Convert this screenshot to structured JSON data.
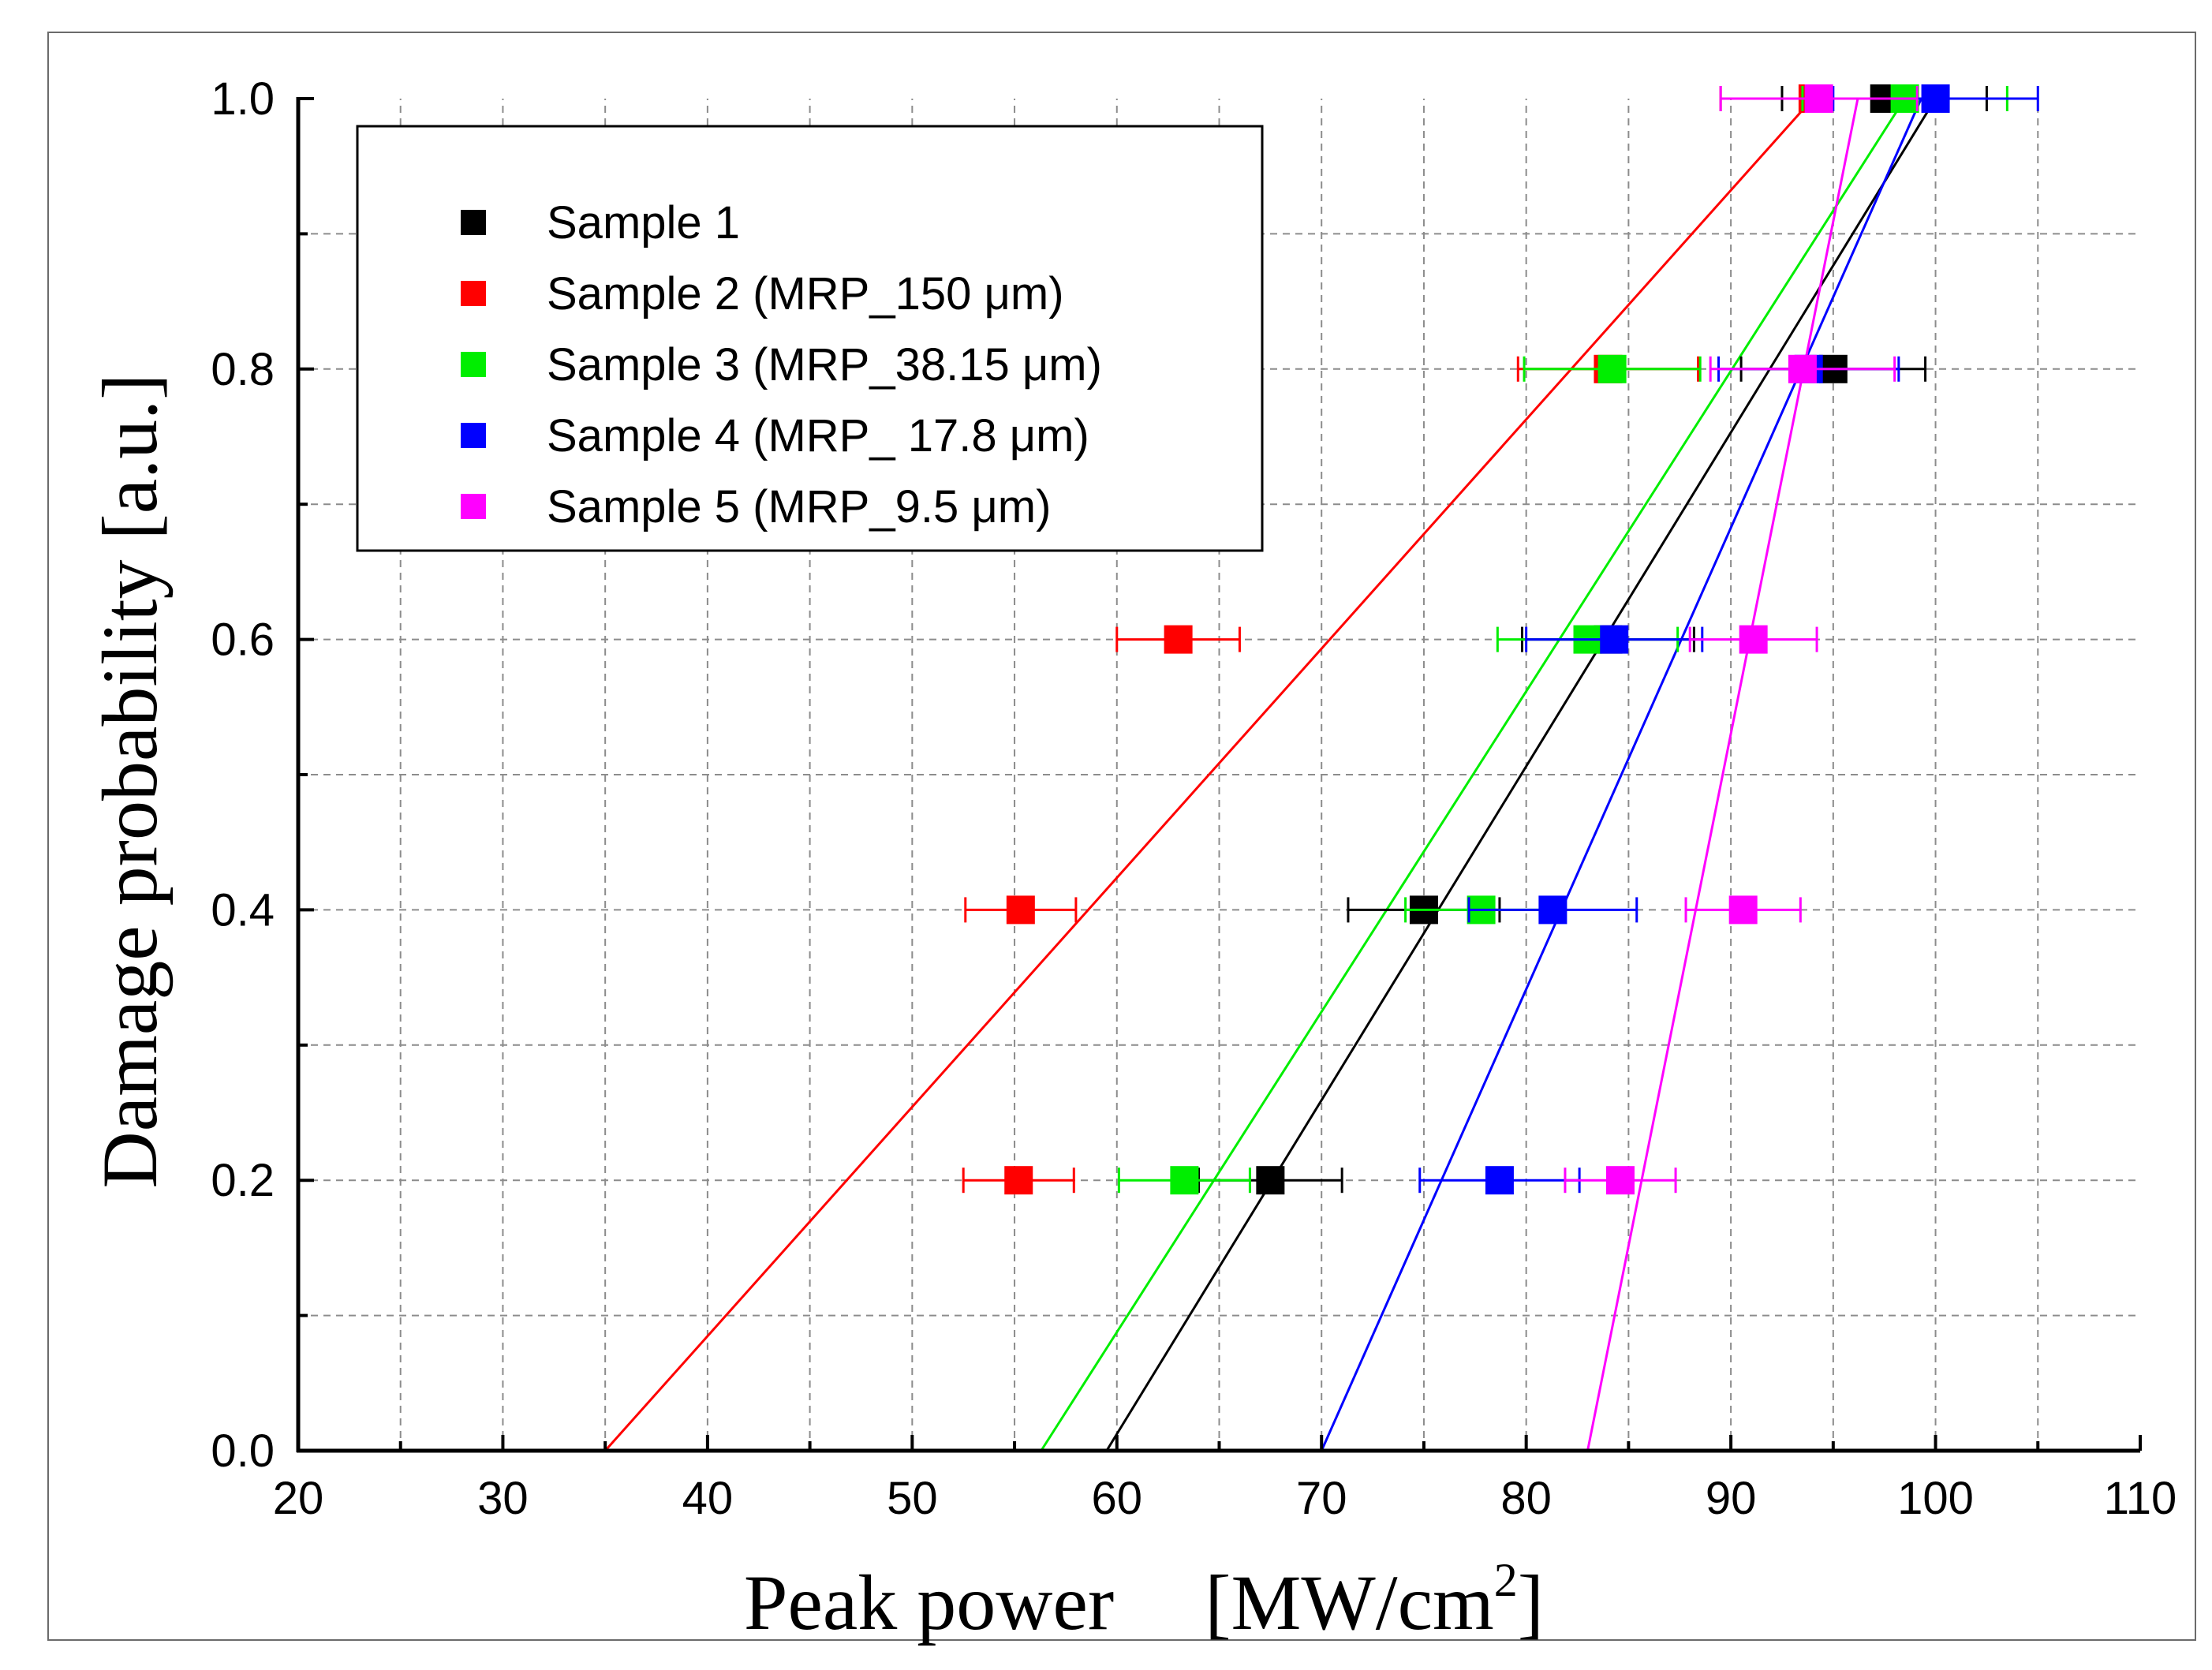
{
  "chart_data": {
    "type": "scatter",
    "title": "",
    "xlabel": "Peak power",
    "xlabel_unit_prefix": "[MW/cm",
    "xlabel_unit_sup": "2",
    "xlabel_unit_suffix": "]",
    "ylabel": "Damage probability [a.u.]",
    "xlim": [
      20,
      110
    ],
    "ylim": [
      0.0,
      1.0
    ],
    "xticks": [
      20,
      30,
      40,
      50,
      60,
      70,
      80,
      90,
      100,
      110
    ],
    "yticks": [
      0.0,
      0.2,
      0.4,
      0.6,
      0.8,
      1.0
    ],
    "xtick_labels": [
      "20",
      "30",
      "40",
      "50",
      "60",
      "70",
      "80",
      "90",
      "100",
      "110"
    ],
    "ytick_labels": [
      "0.0",
      "0.2",
      "0.4",
      "0.6",
      "0.8",
      "1.0"
    ],
    "grid": true,
    "legend_position": "top-left",
    "series": [
      {
        "name": "Sample 1",
        "color": "#000000",
        "points": [
          {
            "x": 67.5,
            "y": 0.2,
            "xerr": 3.5
          },
          {
            "x": 75.0,
            "y": 0.4,
            "xerr": 3.7
          },
          {
            "x": 84.0,
            "y": 0.6,
            "xerr": 4.2
          },
          {
            "x": 95.0,
            "y": 0.8,
            "xerr": 4.5
          },
          {
            "x": 97.5,
            "y": 1.0,
            "xerr": 5.0
          }
        ],
        "fit": {
          "x0": 59.5,
          "x1": 100.0
        }
      },
      {
        "name": "Sample 2 (MRP_150 μm)",
        "color": "#ff0000",
        "points": [
          {
            "x": 55.2,
            "y": 0.2,
            "xerr": 2.7
          },
          {
            "x": 55.3,
            "y": 0.4,
            "xerr": 2.7
          },
          {
            "x": 63.0,
            "y": 0.6,
            "xerr": 3.0
          },
          {
            "x": 84.0,
            "y": 0.8,
            "xerr": 4.4
          },
          {
            "x": 94.0,
            "y": 1.0,
            "xerr": 4.5
          }
        ],
        "fit": {
          "x0": 35.0,
          "x1": 94.0
        }
      },
      {
        "name": "Sample 3 (MRP_38.15 μm)",
        "color": "#00ee00",
        "points": [
          {
            "x": 63.3,
            "y": 0.2,
            "xerr": 3.2
          },
          {
            "x": 77.8,
            "y": 0.4,
            "xerr": 3.7
          },
          {
            "x": 83.0,
            "y": 0.6,
            "xerr": 4.4
          },
          {
            "x": 84.2,
            "y": 0.8,
            "xerr": 4.3
          },
          {
            "x": 98.5,
            "y": 1.0,
            "xerr": 5.0
          }
        ],
        "fit": {
          "x0": 56.3,
          "x1": 98.5
        }
      },
      {
        "name": "Sample 4 (MRP_ 17.8 μm)",
        "color": "#0000ff",
        "points": [
          {
            "x": 78.7,
            "y": 0.2,
            "xerr": 3.9
          },
          {
            "x": 81.3,
            "y": 0.4,
            "xerr": 4.1
          },
          {
            "x": 84.3,
            "y": 0.6,
            "xerr": 4.3
          },
          {
            "x": 93.8,
            "y": 0.8,
            "xerr": 4.4
          },
          {
            "x": 100.0,
            "y": 1.0,
            "xerr": 5.0
          }
        ],
        "fit": {
          "x0": 70.0,
          "x1": 99.3
        }
      },
      {
        "name": "Sample 5 (MRP_9.5 μm)",
        "color": "#ff00ff",
        "points": [
          {
            "x": 84.6,
            "y": 0.2,
            "xerr": 2.7
          },
          {
            "x": 90.6,
            "y": 0.4,
            "xerr": 2.8
          },
          {
            "x": 91.1,
            "y": 0.6,
            "xerr": 3.1
          },
          {
            "x": 93.5,
            "y": 0.8,
            "xerr": 4.5
          },
          {
            "x": 94.3,
            "y": 1.0,
            "xerr": 4.8
          }
        ],
        "fit": {
          "x0": 83.0,
          "x1": 96.2
        }
      }
    ]
  }
}
